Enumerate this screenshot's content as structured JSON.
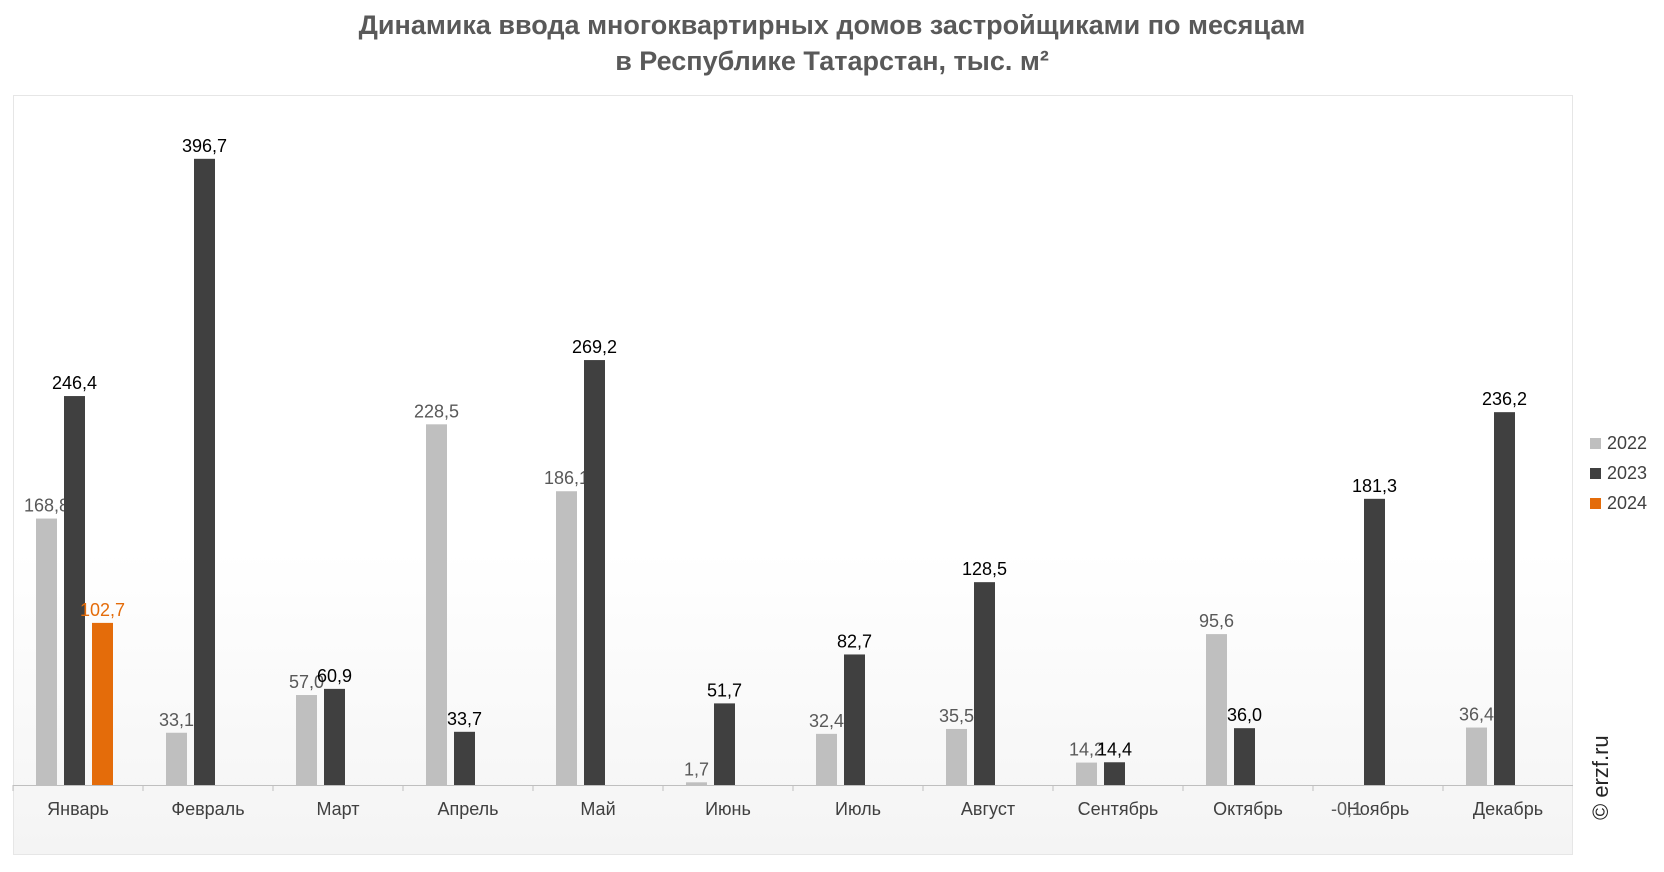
{
  "title_line1": "Динамика ввода многоквартирных домов застройщиками по месяцам",
  "title_line2": "в Республике Татарстан, тыс. м²",
  "copyright": "© erzf.ru",
  "colors": {
    "2022": "#bfbfbf",
    "2023": "#404040",
    "2024": "#e46c0a"
  },
  "chart_data": {
    "type": "bar",
    "title": "Динамика ввода многоквартирных домов застройщиками по месяцам в Республике Татарстан, тыс. м²",
    "categories": [
      "Январь",
      "Февраль",
      "Март",
      "Апрель",
      "Май",
      "Июнь",
      "Июль",
      "Август",
      "Сентябрь",
      "Октябрь",
      "Ноябрь",
      "Декабрь"
    ],
    "series": [
      {
        "name": "2022",
        "values": [
          168.8,
          33.1,
          57.0,
          228.5,
          186.1,
          1.7,
          32.4,
          35.5,
          14.2,
          95.6,
          -0.1,
          36.4
        ],
        "labels": [
          "168,8",
          "33,1",
          "57,0",
          "228,5",
          "186,1",
          "1,7",
          "32,4",
          "35,5",
          "14,2",
          "95,6",
          "-0,1",
          "36,4"
        ]
      },
      {
        "name": "2023",
        "values": [
          246.4,
          396.7,
          60.9,
          33.7,
          269.2,
          51.7,
          82.7,
          128.5,
          14.4,
          36.0,
          181.3,
          236.2
        ],
        "labels": [
          "246,4",
          "396,7",
          "60,9",
          "33,7",
          "269,2",
          "51,7",
          "82,7",
          "128,5",
          "14,4",
          "36,0",
          "181,3",
          "236,2"
        ]
      },
      {
        "name": "2024",
        "values": [
          102.7,
          null,
          null,
          null,
          null,
          null,
          null,
          null,
          null,
          null,
          null,
          null
        ],
        "labels": [
          "102,7",
          "",
          "",
          "",
          "",
          "",
          "",
          "",
          "",
          "",
          "",
          ""
        ]
      }
    ],
    "legend_position": "right",
    "grid": false
  }
}
